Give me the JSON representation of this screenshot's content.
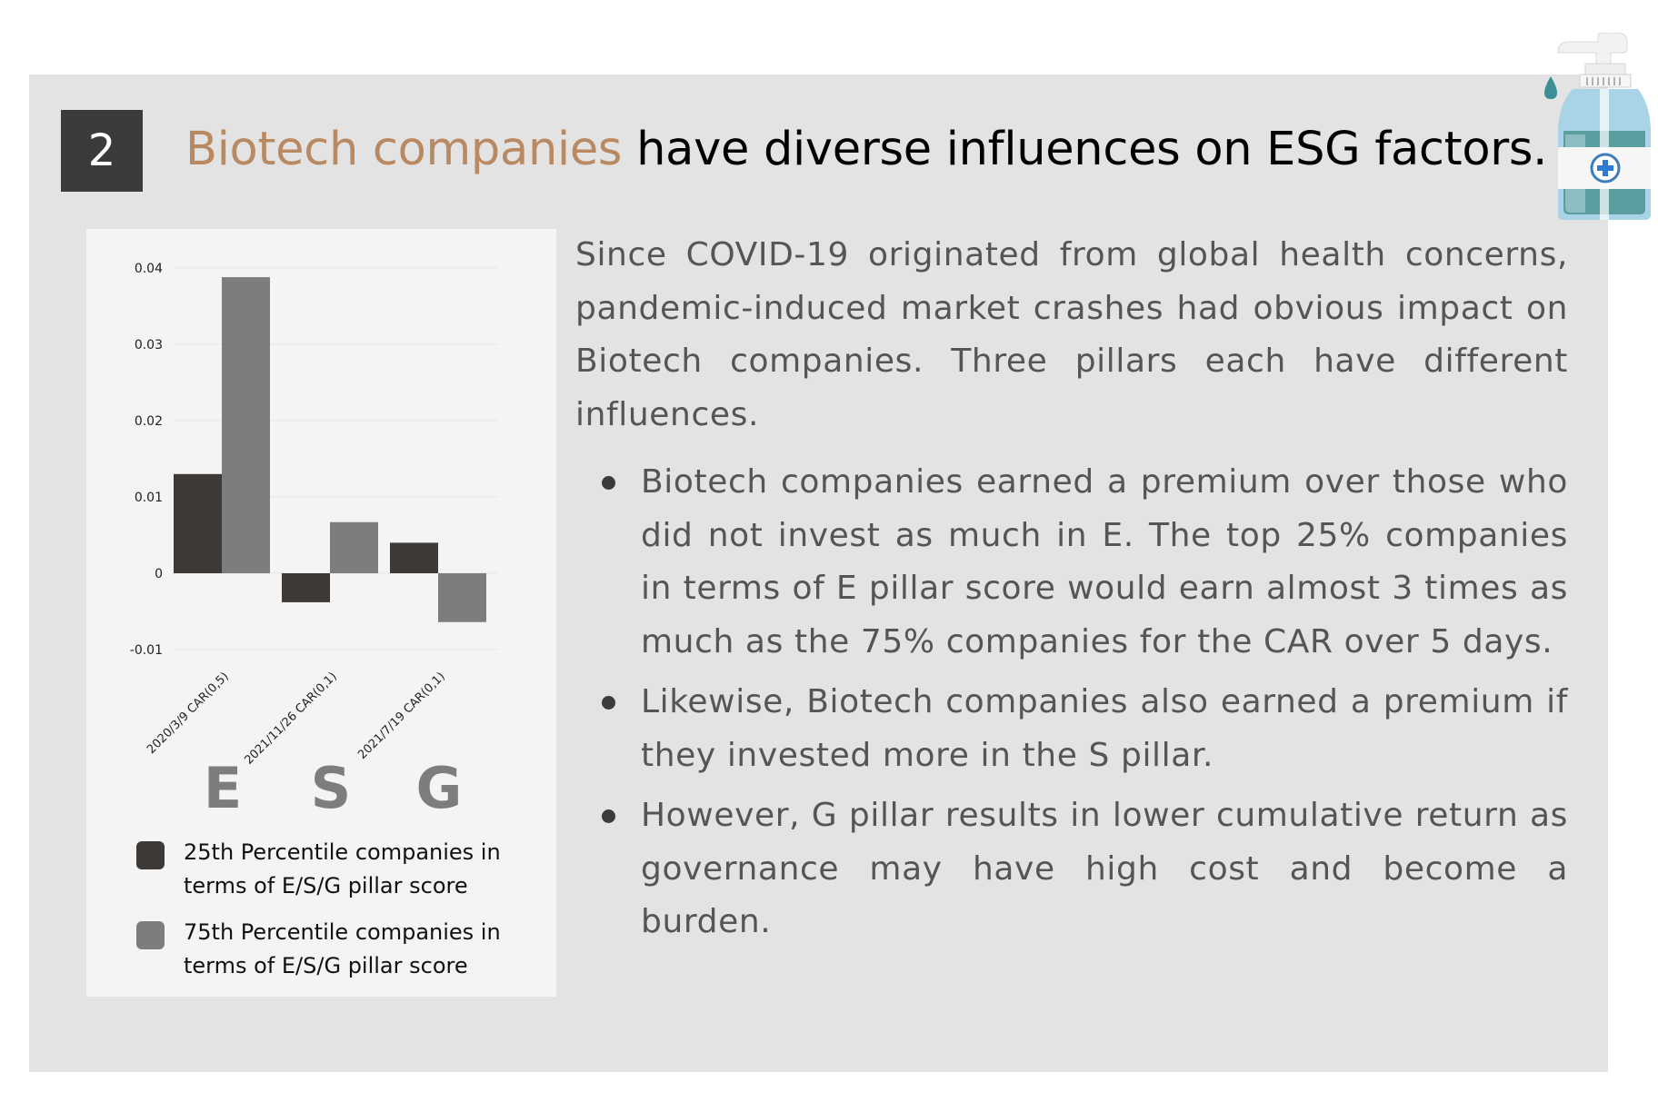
{
  "header": {
    "number": "2",
    "title_highlight": "Biotech companies",
    "title_rest": " have diverse influences on ESG factors."
  },
  "colors": {
    "accent": "#b98a62",
    "badge": "#3d3b3a",
    "panel": "#e3e3e3",
    "series_25": "#3d3937",
    "series_75": "#7d7d7d",
    "pillar_letters": "#7d7d7d"
  },
  "decoration": {
    "icon": "hand-sanitizer-icon"
  },
  "chart_data": {
    "type": "bar",
    "categories": [
      "2020/3/9 CAR(0,5)",
      "2021/11/26 CAR(0,1)",
      "2021/7/19 CAR(0,1)"
    ],
    "series": [
      {
        "name": "25th Percentile companies in terms of E/S/G pillar score",
        "values": [
          0.013,
          -0.0038,
          0.004
        ]
      },
      {
        "name": "75th Percentile companies in terms of E/S/G pillar score",
        "values": [
          0.0388,
          0.0067,
          -0.0064
        ]
      }
    ],
    "y_ticks": [
      "0.04",
      "0.03",
      "0.02",
      "0.01",
      "0",
      "-0.01"
    ],
    "ylim": [
      -0.01,
      0.04
    ],
    "grid": true,
    "legend_position": "bottom",
    "pillar_labels": [
      "E",
      "S",
      "G"
    ],
    "title": "",
    "xlabel": "",
    "ylabel": ""
  },
  "legend": [
    {
      "line1": "25th Percentile companies in",
      "line2": "terms of E/S/G pillar score"
    },
    {
      "line1": "75th Percentile companies in",
      "line2": "terms of E/S/G pillar score"
    }
  ],
  "intro": "Since COVID-19  originated from global health concerns, pandemic-induced market crashes had obvious impact on Biotech companies. Three pillars each have different influences.",
  "bullets": [
    "Biotech companies earned a premium over those who did not invest as much in E. The top 25% companies in terms of E pillar score would earn almost 3 times as much as the 75% companies for the CAR over 5 days.",
    "Likewise, Biotech companies also earned a premium if they invested more in the S pillar.",
    "However, G pillar results in lower cumulative return as governance may have high cost and become a burden."
  ]
}
